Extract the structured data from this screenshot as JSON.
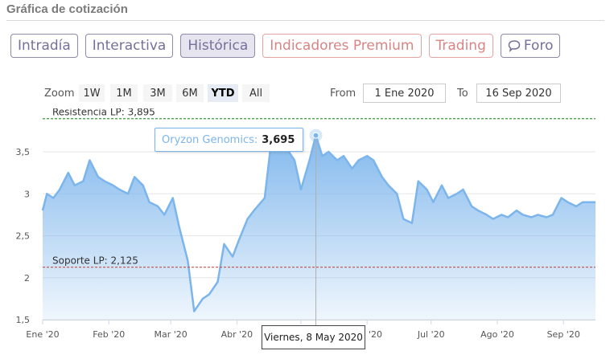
{
  "title": "Gráfica de cotización",
  "tabs": [
    {
      "label": "Intradía"
    },
    {
      "label": "Interactiva"
    },
    {
      "label": "Histórica"
    },
    {
      "label": "Indicadores Premium"
    },
    {
      "label": "Trading"
    },
    {
      "label": "Foro",
      "icon": "chat-bubble-icon"
    }
  ],
  "active_tab": "Histórica",
  "zoom": {
    "label": "Zoom",
    "buttons": [
      "1W",
      "1M",
      "3M",
      "6M",
      "YTD",
      "All"
    ],
    "selected": "YTD"
  },
  "range": {
    "from_label": "From",
    "from_value": "1 Ene 2020",
    "to_label": "To",
    "to_value": "16 Sep 2020"
  },
  "colors": {
    "series_line": "#7cb5ec",
    "resistance_line": "#3a9a3a",
    "support_line": "#c0504d",
    "tab_text": "#75709a",
    "premium_text": "#d98484"
  },
  "tooltip": {
    "series_name": "Oryzon Genomics:",
    "value": "3,695"
  },
  "crosshair_label": "Viernes, 8 May 2020",
  "chart_data": {
    "type": "area",
    "series": [
      {
        "name": "Oryzon Genomics",
        "x": [
          "2020-01-01",
          "2020-01-03",
          "2020-01-06",
          "2020-01-09",
          "2020-01-13",
          "2020-01-16",
          "2020-01-20",
          "2020-01-23",
          "2020-01-27",
          "2020-01-30",
          "2020-02-03",
          "2020-02-06",
          "2020-02-10",
          "2020-02-13",
          "2020-02-17",
          "2020-02-20",
          "2020-02-24",
          "2020-02-27",
          "2020-03-02",
          "2020-03-05",
          "2020-03-09",
          "2020-03-12",
          "2020-03-16",
          "2020-03-19",
          "2020-03-23",
          "2020-03-26",
          "2020-03-30",
          "2020-04-02",
          "2020-04-06",
          "2020-04-09",
          "2020-04-14",
          "2020-04-17",
          "2020-04-21",
          "2020-04-24",
          "2020-04-28",
          "2020-05-01",
          "2020-05-05",
          "2020-05-08",
          "2020-05-11",
          "2020-05-14",
          "2020-05-18",
          "2020-05-21",
          "2020-05-25",
          "2020-05-28",
          "2020-06-01",
          "2020-06-04",
          "2020-06-08",
          "2020-06-11",
          "2020-06-15",
          "2020-06-18",
          "2020-06-22",
          "2020-06-25",
          "2020-06-29",
          "2020-07-02",
          "2020-07-06",
          "2020-07-09",
          "2020-07-13",
          "2020-07-16",
          "2020-07-20",
          "2020-07-23",
          "2020-07-27",
          "2020-07-30",
          "2020-08-03",
          "2020-08-06",
          "2020-08-10",
          "2020-08-13",
          "2020-08-17",
          "2020-08-20",
          "2020-08-24",
          "2020-08-27",
          "2020-08-31",
          "2020-09-03",
          "2020-09-07",
          "2020-09-10",
          "2020-09-16"
        ],
        "values": [
          2.8,
          3.0,
          2.95,
          3.05,
          3.25,
          3.1,
          3.15,
          3.4,
          3.2,
          3.15,
          3.1,
          3.05,
          3.0,
          3.2,
          3.1,
          2.9,
          2.85,
          2.75,
          2.95,
          2.6,
          2.2,
          1.6,
          1.75,
          1.8,
          1.95,
          2.4,
          2.25,
          2.45,
          2.7,
          2.8,
          2.95,
          3.6,
          3.7,
          3.55,
          3.4,
          3.05,
          3.4,
          3.695,
          3.45,
          3.5,
          3.4,
          3.45,
          3.3,
          3.4,
          3.45,
          3.4,
          3.2,
          3.1,
          3.0,
          2.7,
          2.65,
          3.15,
          3.05,
          2.9,
          3.1,
          2.95,
          3.0,
          3.05,
          2.85,
          2.8,
          2.75,
          2.7,
          2.75,
          2.72,
          2.8,
          2.75,
          2.72,
          2.75,
          2.72,
          2.75,
          2.95,
          2.9,
          2.85,
          2.9,
          2.9
        ]
      }
    ],
    "ylim": [
      1.5,
      3.9
    ],
    "ytick_labels": [
      "1,5",
      "2",
      "2,5",
      "3",
      "3,5"
    ],
    "yticks": [
      1.5,
      2,
      2.5,
      3,
      3.5
    ],
    "xtick_labels": [
      "Ene '20",
      "Feb '20",
      "Mar '20",
      "Abr '20",
      "May '20",
      "Jun '20",
      "Jul '20",
      "Ago '20",
      "Sep '20"
    ],
    "xticks": [
      "2020-01-01",
      "2020-02-01",
      "2020-03-01",
      "2020-04-01",
      "2020-05-01",
      "2020-06-01",
      "2020-07-01",
      "2020-08-01",
      "2020-09-01"
    ],
    "xlim": [
      "2020-01-01",
      "2020-09-16"
    ],
    "plot_lines": [
      {
        "label": "Resistencia LP: 3,895",
        "value": 3.895,
        "color": "#3a9a3a",
        "style": "dashed"
      },
      {
        "label": "Soporte LP: 2,125",
        "value": 2.125,
        "color": "#c0504d",
        "style": "dashed"
      }
    ],
    "highlighted_point": {
      "x": "2020-05-08",
      "y": 3.695
    },
    "grid": true,
    "legend": "none"
  }
}
